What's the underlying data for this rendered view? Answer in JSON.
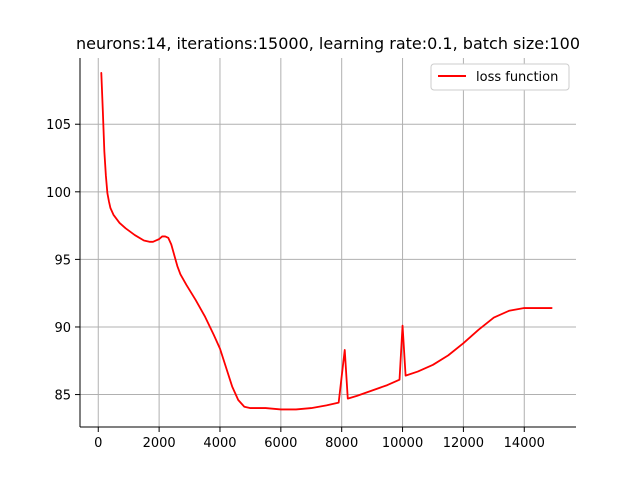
{
  "chart_data": {
    "type": "line",
    "title": "neurons:14, iterations:15000, learning rate:0.1, batch size:100",
    "xlabel": "",
    "ylabel": "",
    "xlim": [
      -600,
      15700
    ],
    "ylim": [
      82.6,
      109.9
    ],
    "x_ticks": [
      0,
      2000,
      4000,
      6000,
      8000,
      10000,
      12000,
      14000
    ],
    "y_ticks": [
      85,
      90,
      95,
      100,
      105
    ],
    "x_tick_labels": [
      "0",
      "2000",
      "4000",
      "6000",
      "8000",
      "10000",
      "12000",
      "14000"
    ],
    "y_tick_labels": [
      "85",
      "90",
      "95",
      "100",
      "105"
    ],
    "grid": true,
    "legend_position": "upper right",
    "colors": {
      "series": "#ff0000",
      "grid": "#b0b0b0",
      "axes": "#000000"
    },
    "series": [
      {
        "name": "loss function",
        "x": [
          100,
          150,
          200,
          250,
          300,
          350,
          400,
          500,
          700,
          900,
          1200,
          1500,
          1700,
          1800,
          1900,
          2000,
          2100,
          2200,
          2300,
          2400,
          2500,
          2600,
          2700,
          2900,
          3200,
          3500,
          3800,
          4000,
          4200,
          4400,
          4600,
          4800,
          5000,
          5200,
          5500,
          6000,
          6500,
          7000,
          7500,
          7900,
          8100,
          8200,
          8500,
          9000,
          9500,
          9900,
          10000,
          10100,
          10500,
          11000,
          11500,
          12000,
          12500,
          13000,
          13500,
          14000,
          14500,
          14900
        ],
        "y": [
          108.8,
          106.0,
          103.0,
          101.2,
          99.9,
          99.3,
          98.8,
          98.3,
          97.7,
          97.3,
          96.8,
          96.4,
          96.3,
          96.3,
          96.4,
          96.5,
          96.7,
          96.7,
          96.6,
          96.1,
          95.3,
          94.5,
          93.9,
          93.1,
          92.0,
          90.8,
          89.4,
          88.4,
          87.0,
          85.6,
          84.6,
          84.1,
          84.0,
          84.0,
          84.0,
          83.9,
          83.9,
          84.0,
          84.2,
          84.4,
          88.3,
          84.7,
          84.9,
          85.3,
          85.7,
          86.1,
          90.1,
          86.4,
          86.7,
          87.2,
          87.9,
          88.8,
          89.8,
          90.7,
          91.2,
          91.4,
          91.4,
          91.4
        ]
      }
    ]
  }
}
